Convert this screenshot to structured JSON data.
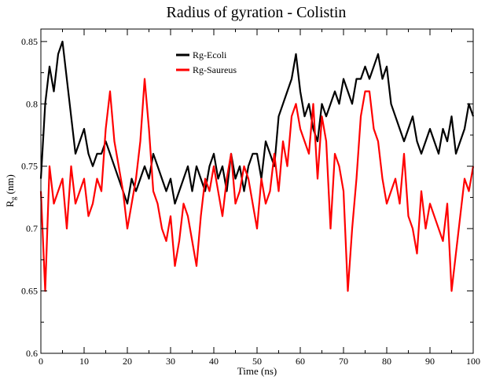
{
  "chart_data": {
    "type": "line",
    "title": "Radius of gyration - Colistin",
    "xlabel": "Time (ns)",
    "ylabel": {
      "main": "R",
      "sub": "g",
      "rest": " (nm)"
    },
    "xlim": [
      0,
      100
    ],
    "ylim": [
      0.6,
      0.86
    ],
    "xticks": [
      0,
      10,
      20,
      30,
      40,
      50,
      60,
      70,
      80,
      90,
      100
    ],
    "yticks": [
      0.6,
      0.65,
      0.7,
      0.75,
      0.8,
      0.85
    ],
    "ytick_labels": [
      "0.6",
      "0.65",
      "0.7",
      "0.75",
      "0.8",
      "0.85"
    ],
    "grid": false,
    "legend_position": "top-center",
    "series": [
      {
        "name": "Rg-Ecoli",
        "color": "#000000",
        "x": [
          0,
          1,
          2,
          3,
          4,
          5,
          6,
          7,
          8,
          9,
          10,
          11,
          12,
          13,
          14,
          15,
          16,
          17,
          18,
          19,
          20,
          21,
          22,
          23,
          24,
          25,
          26,
          27,
          28,
          29,
          30,
          31,
          32,
          33,
          34,
          35,
          36,
          37,
          38,
          39,
          40,
          41,
          42,
          43,
          44,
          45,
          46,
          47,
          48,
          49,
          50,
          51,
          52,
          53,
          54,
          55,
          56,
          57,
          58,
          59,
          60,
          61,
          62,
          63,
          64,
          65,
          66,
          67,
          68,
          69,
          70,
          71,
          72,
          73,
          74,
          75,
          76,
          77,
          78,
          79,
          80,
          81,
          82,
          83,
          84,
          85,
          86,
          87,
          88,
          89,
          90,
          91,
          92,
          93,
          94,
          95,
          96,
          97,
          98,
          99,
          100
        ],
        "y": [
          0.74,
          0.8,
          0.83,
          0.81,
          0.84,
          0.85,
          0.82,
          0.79,
          0.76,
          0.77,
          0.78,
          0.76,
          0.75,
          0.76,
          0.76,
          0.77,
          0.76,
          0.75,
          0.74,
          0.73,
          0.72,
          0.74,
          0.73,
          0.74,
          0.75,
          0.74,
          0.76,
          0.75,
          0.74,
          0.73,
          0.74,
          0.72,
          0.73,
          0.74,
          0.75,
          0.73,
          0.75,
          0.74,
          0.73,
          0.75,
          0.76,
          0.74,
          0.75,
          0.73,
          0.76,
          0.74,
          0.75,
          0.73,
          0.75,
          0.76,
          0.76,
          0.74,
          0.77,
          0.76,
          0.75,
          0.79,
          0.8,
          0.81,
          0.82,
          0.84,
          0.81,
          0.79,
          0.8,
          0.78,
          0.77,
          0.8,
          0.79,
          0.8,
          0.81,
          0.8,
          0.82,
          0.81,
          0.8,
          0.82,
          0.82,
          0.83,
          0.82,
          0.83,
          0.84,
          0.82,
          0.83,
          0.8,
          0.79,
          0.78,
          0.77,
          0.78,
          0.79,
          0.77,
          0.76,
          0.77,
          0.78,
          0.77,
          0.76,
          0.78,
          0.77,
          0.79,
          0.76,
          0.77,
          0.78,
          0.8,
          0.79
        ]
      },
      {
        "name": "Rg-Saureus",
        "color": "#ff0000",
        "x": [
          0,
          1,
          2,
          3,
          4,
          5,
          6,
          7,
          8,
          9,
          10,
          11,
          12,
          13,
          14,
          15,
          16,
          17,
          18,
          19,
          20,
          21,
          22,
          23,
          24,
          25,
          26,
          27,
          28,
          29,
          30,
          31,
          32,
          33,
          34,
          35,
          36,
          37,
          38,
          39,
          40,
          41,
          42,
          43,
          44,
          45,
          46,
          47,
          48,
          49,
          50,
          51,
          52,
          53,
          54,
          55,
          56,
          57,
          58,
          59,
          60,
          61,
          62,
          63,
          64,
          65,
          66,
          67,
          68,
          69,
          70,
          71,
          72,
          73,
          74,
          75,
          76,
          77,
          78,
          79,
          80,
          81,
          82,
          83,
          84,
          85,
          86,
          87,
          88,
          89,
          90,
          91,
          92,
          93,
          94,
          95,
          96,
          97,
          98,
          99,
          100
        ],
        "y": [
          0.73,
          0.65,
          0.75,
          0.72,
          0.73,
          0.74,
          0.7,
          0.75,
          0.72,
          0.73,
          0.74,
          0.71,
          0.72,
          0.74,
          0.73,
          0.78,
          0.81,
          0.77,
          0.75,
          0.73,
          0.7,
          0.72,
          0.74,
          0.77,
          0.82,
          0.78,
          0.73,
          0.72,
          0.7,
          0.69,
          0.71,
          0.67,
          0.69,
          0.72,
          0.71,
          0.69,
          0.67,
          0.71,
          0.74,
          0.73,
          0.75,
          0.73,
          0.71,
          0.74,
          0.76,
          0.72,
          0.73,
          0.75,
          0.74,
          0.72,
          0.7,
          0.74,
          0.72,
          0.73,
          0.76,
          0.73,
          0.77,
          0.75,
          0.79,
          0.8,
          0.78,
          0.77,
          0.76,
          0.8,
          0.74,
          0.79,
          0.77,
          0.7,
          0.76,
          0.75,
          0.73,
          0.65,
          0.7,
          0.74,
          0.79,
          0.81,
          0.81,
          0.78,
          0.77,
          0.74,
          0.72,
          0.73,
          0.74,
          0.72,
          0.76,
          0.71,
          0.7,
          0.68,
          0.73,
          0.7,
          0.72,
          0.71,
          0.7,
          0.69,
          0.72,
          0.65,
          0.68,
          0.71,
          0.74,
          0.73,
          0.75
        ]
      }
    ]
  }
}
